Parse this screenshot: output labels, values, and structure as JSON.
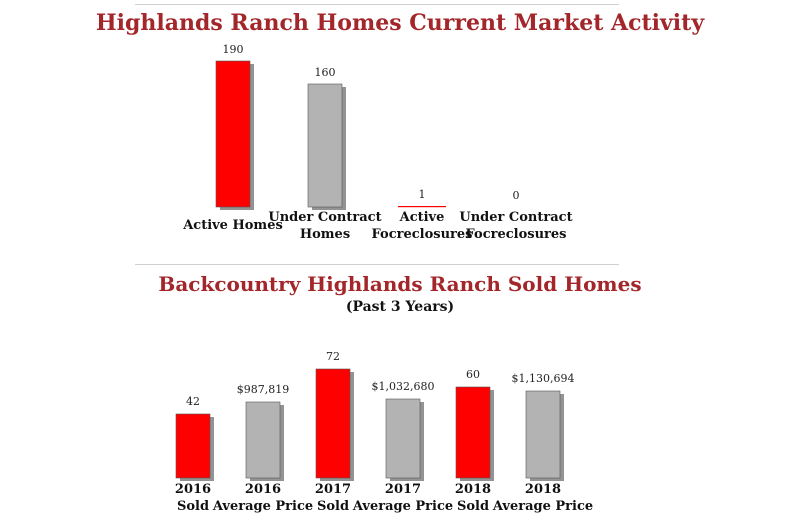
{
  "chart_data": [
    {
      "type": "bar",
      "title": "Highlands Ranch Homes Current Market Activity",
      "categories": [
        [
          "Active Homes"
        ],
        [
          "Under Contract",
          "Homes"
        ],
        [
          "Active",
          "Focreclosures"
        ],
        [
          "Under Contract",
          "Focreclosures"
        ]
      ],
      "values": [
        190,
        160,
        1,
        0
      ],
      "value_labels": [
        "190",
        "160",
        "1",
        "0"
      ],
      "bar_colors": [
        "#ff0000",
        "#b3b3b3",
        "#ff0000",
        "#b3b3b3"
      ],
      "ylim": [
        0,
        190
      ],
      "grid": false
    },
    {
      "type": "bar",
      "title": "Backcountry Highlands Ranch Sold Homes",
      "subtitle": "(Past 3 Years)",
      "categories": [
        [
          "2016",
          "Sold"
        ],
        [
          "2016",
          "Average Price"
        ],
        [
          "2017",
          "Sold"
        ],
        [
          "2017",
          "Average Price"
        ],
        [
          "2018",
          "Sold"
        ],
        [
          "2018",
          "Average Price"
        ]
      ],
      "values": [
        42,
        987819,
        72,
        1032680,
        60,
        1130694
      ],
      "value_labels": [
        "42",
        "$987,819",
        "72",
        "$1,032,680",
        "60",
        "$1,130,694"
      ],
      "bar_colors": [
        "#ff0000",
        "#b3b3b3",
        "#ff0000",
        "#b3b3b3",
        "#ff0000",
        "#b3b3b3"
      ],
      "grid": false
    }
  ]
}
